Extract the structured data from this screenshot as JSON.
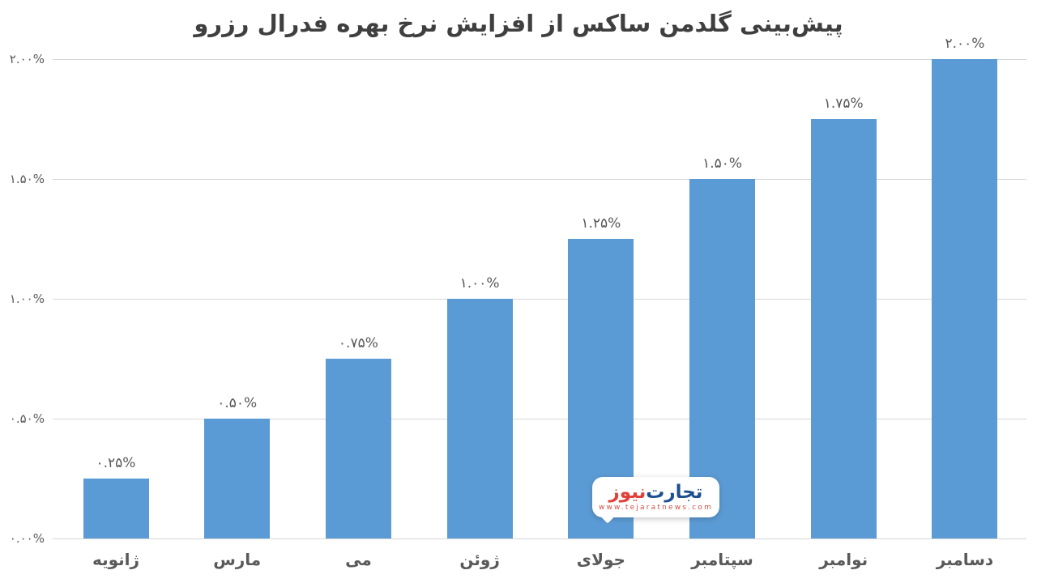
{
  "chart_data": {
    "type": "bar",
    "title": "پیش‌بینی گلدمن ساکس از افزایش نرخ بهره فدرال رزرو",
    "categories": [
      "ژانویه",
      "مارس",
      "می",
      "ژوئن",
      "جولای",
      "سپتامبر",
      "نوامبر",
      "دسامبر"
    ],
    "values": [
      0.25,
      0.5,
      0.75,
      1.0,
      1.25,
      1.5,
      1.75,
      2.0
    ],
    "value_labels": [
      "۰.۲۵%",
      "۰.۵۰%",
      "۰.۷۵%",
      "۱.۰۰%",
      "۱.۲۵%",
      "۱.۵۰%",
      "۱.۷۵%",
      "۲.۰۰%"
    ],
    "xlabel": "",
    "ylabel": "",
    "ylim": [
      0,
      2.0
    ],
    "yticks": [
      0,
      0.5,
      1.0,
      1.5,
      2.0
    ],
    "ytick_labels": [
      "۰.۰۰%",
      "۰.۵۰%",
      "۱.۰۰%",
      "۱.۵۰%",
      "۲.۰۰%"
    ],
    "grid": true,
    "legend": false
  },
  "colors": {
    "bar": "#5B9BD5",
    "grid": "#D6D6D6",
    "background": "#FFFFFF",
    "title_text": "#3F3F3F",
    "axis_text": "#595959",
    "logo_blue": "#1D4F91",
    "logo_red": "#E0413A",
    "logo_url": "#CF5148"
  },
  "watermark": {
    "brand_word_1": "تجارت‌",
    "brand_word_2": "نیوز",
    "url": "www.tejaratnews.com"
  }
}
